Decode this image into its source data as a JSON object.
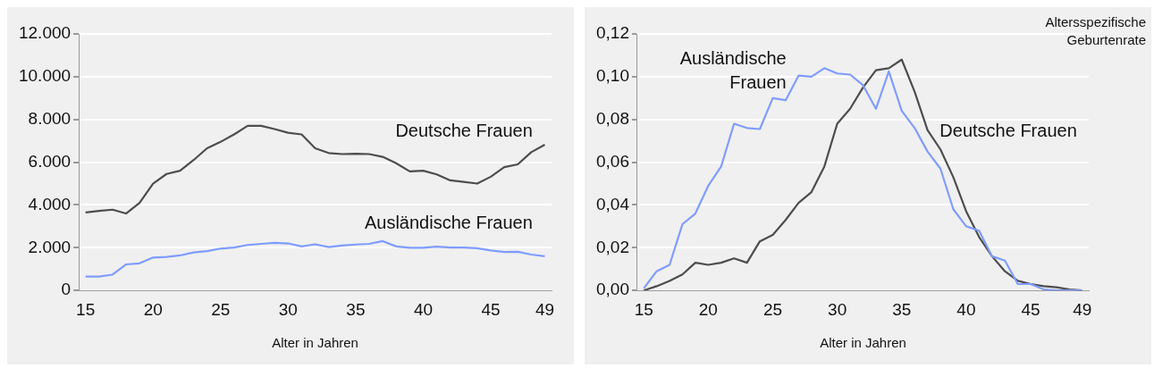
{
  "chart_data": [
    {
      "type": "line",
      "xlabel": "Alter in Jahren",
      "x": [
        15,
        16,
        17,
        18,
        19,
        20,
        21,
        22,
        23,
        24,
        25,
        26,
        27,
        28,
        29,
        30,
        31,
        32,
        33,
        34,
        35,
        36,
        37,
        38,
        39,
        40,
        41,
        42,
        43,
        44,
        45,
        46,
        47,
        48,
        49
      ],
      "series": [
        {
          "name": "Deutsche Frauen",
          "color": "#4d4d4d",
          "values": [
            3650,
            3720,
            3780,
            3600,
            4100,
            5000,
            5450,
            5600,
            6100,
            6650,
            6950,
            7300,
            7700,
            7700,
            7550,
            7380,
            7300,
            6650,
            6430,
            6380,
            6400,
            6380,
            6250,
            5950,
            5570,
            5600,
            5430,
            5150,
            5080,
            5000,
            5320,
            5770,
            5900,
            6470,
            6820
          ]
        },
        {
          "name": "Ausländische Frauen",
          "color": "#7f9cff",
          "values": [
            650,
            650,
            740,
            1220,
            1270,
            1540,
            1570,
            1640,
            1780,
            1840,
            1960,
            2010,
            2130,
            2180,
            2230,
            2200,
            2060,
            2160,
            2030,
            2100,
            2150,
            2180,
            2310,
            2060,
            2000,
            2000,
            2050,
            2010,
            2010,
            1980,
            1870,
            1800,
            1810,
            1680,
            1600
          ]
        }
      ],
      "xlim": [
        14.5,
        49.5
      ],
      "xticks": [
        15,
        20,
        25,
        30,
        35,
        40,
        45,
        49
      ],
      "ylim": [
        0,
        12000
      ],
      "yticks": [
        {
          "value": 0,
          "label": "0"
        },
        {
          "value": 2000,
          "label": "2.000"
        },
        {
          "value": 4000,
          "label": "4.000"
        },
        {
          "value": 6000,
          "label": "6.000"
        },
        {
          "value": 8000,
          "label": "8.000"
        },
        {
          "value": 10000,
          "label": "10.000"
        },
        {
          "value": 12000,
          "label": "12.000"
        }
      ],
      "grid": "y",
      "legend": false,
      "marker": "none",
      "line_style": "solid"
    },
    {
      "type": "line",
      "xlabel": "Alter in Jahren",
      "ylabel": "Altersspezifische Geburtenrate",
      "x": [
        15,
        16,
        17,
        18,
        19,
        20,
        21,
        22,
        23,
        24,
        25,
        26,
        27,
        28,
        29,
        30,
        31,
        32,
        33,
        34,
        35,
        36,
        37,
        38,
        39,
        40,
        41,
        42,
        43,
        44,
        45,
        46,
        47,
        48,
        49
      ],
      "series": [
        {
          "name": "Ausländische Frauen",
          "color": "#7f9cff",
          "values": [
            0.001,
            0.009,
            0.012,
            0.031,
            0.036,
            0.049,
            0.058,
            0.078,
            0.076,
            0.0755,
            0.09,
            0.089,
            0.1005,
            0.1,
            0.104,
            0.1015,
            0.101,
            0.096,
            0.085,
            0.1025,
            0.084,
            0.076,
            0.065,
            0.057,
            0.038,
            0.03,
            0.028,
            0.016,
            0.014,
            0.003,
            0.003,
            0.0005,
            0,
            0,
            0
          ]
        },
        {
          "name": "Deutsche Frauen",
          "color": "#4d4d4d",
          "values": [
            0,
            0.002,
            0.0045,
            0.0075,
            0.013,
            0.012,
            0.013,
            0.015,
            0.013,
            0.023,
            0.026,
            0.033,
            0.041,
            0.046,
            0.058,
            0.078,
            0.085,
            0.095,
            0.103,
            0.104,
            0.108,
            0.093,
            0.075,
            0.066,
            0.053,
            0.037,
            0.025,
            0.016,
            0.009,
            0.0045,
            0.003,
            0.002,
            0.0015,
            0.0005,
            0
          ]
        }
      ],
      "xlim": [
        14.5,
        49.5
      ],
      "xticks": [
        15,
        20,
        25,
        30,
        35,
        40,
        45,
        49
      ],
      "ylim": [
        0,
        0.12
      ],
      "yticks": [
        {
          "value": 0,
          "label": "0,00"
        },
        {
          "value": 0.02,
          "label": "0,02"
        },
        {
          "value": 0.04,
          "label": "0,04"
        },
        {
          "value": 0.06,
          "label": "0,06"
        },
        {
          "value": 0.08,
          "label": "0,08"
        },
        {
          "value": 0.1,
          "label": "0,10"
        },
        {
          "value": 0.12,
          "label": "0,12"
        }
      ],
      "grid": "y",
      "legend": false,
      "marker": "none",
      "line_style": "solid"
    }
  ]
}
